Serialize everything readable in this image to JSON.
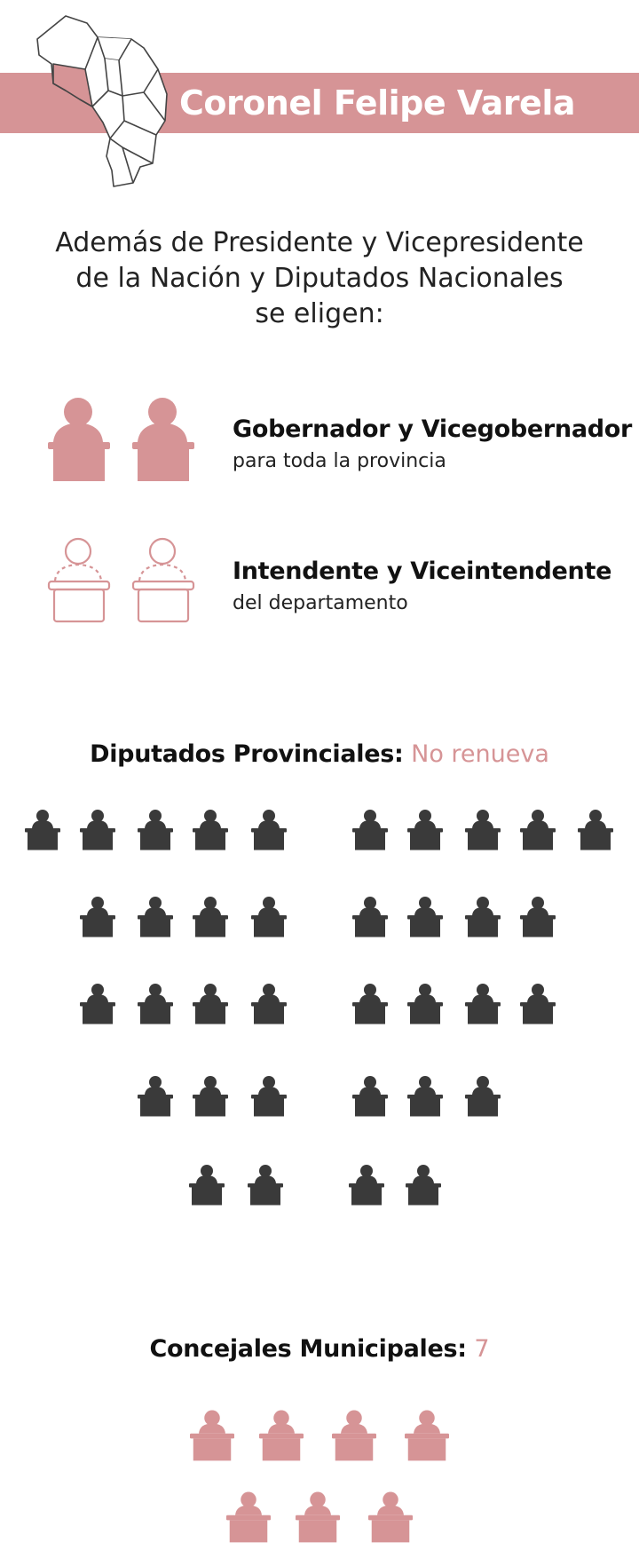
{
  "header": {
    "department": "Coronel Felipe Varela",
    "map_icon": "province-map-icon",
    "accent_color": "#d69496"
  },
  "intro": {
    "lines": [
      "Además de Presidente y Vicepresidente",
      "de la Nación y Diputados Nacionales",
      "se eligen:"
    ]
  },
  "offices": [
    {
      "title": "Gobernador y Vicegobernador",
      "subtitle": "para toda la provincia",
      "icon": "speaker-at-podium-filled-icon",
      "icon_count": 2,
      "color": "#d69496"
    },
    {
      "title": "Intendente y Viceintendente",
      "subtitle": "del departamento",
      "icon": "speaker-at-podium-outline-icon",
      "icon_count": 2,
      "color": "#d69496"
    }
  ],
  "diputados": {
    "label": "Diputados Provinciales:",
    "value": "No renueva",
    "seat_icon": "legislator-seat-icon",
    "seat_color": "#3a3a3a",
    "seat_count": 36
  },
  "concejales": {
    "label": "Concejales Municipales:",
    "value": "7",
    "seat_icon": "legislator-seat-icon",
    "seat_color": "#d69496",
    "seat_count": 7
  }
}
